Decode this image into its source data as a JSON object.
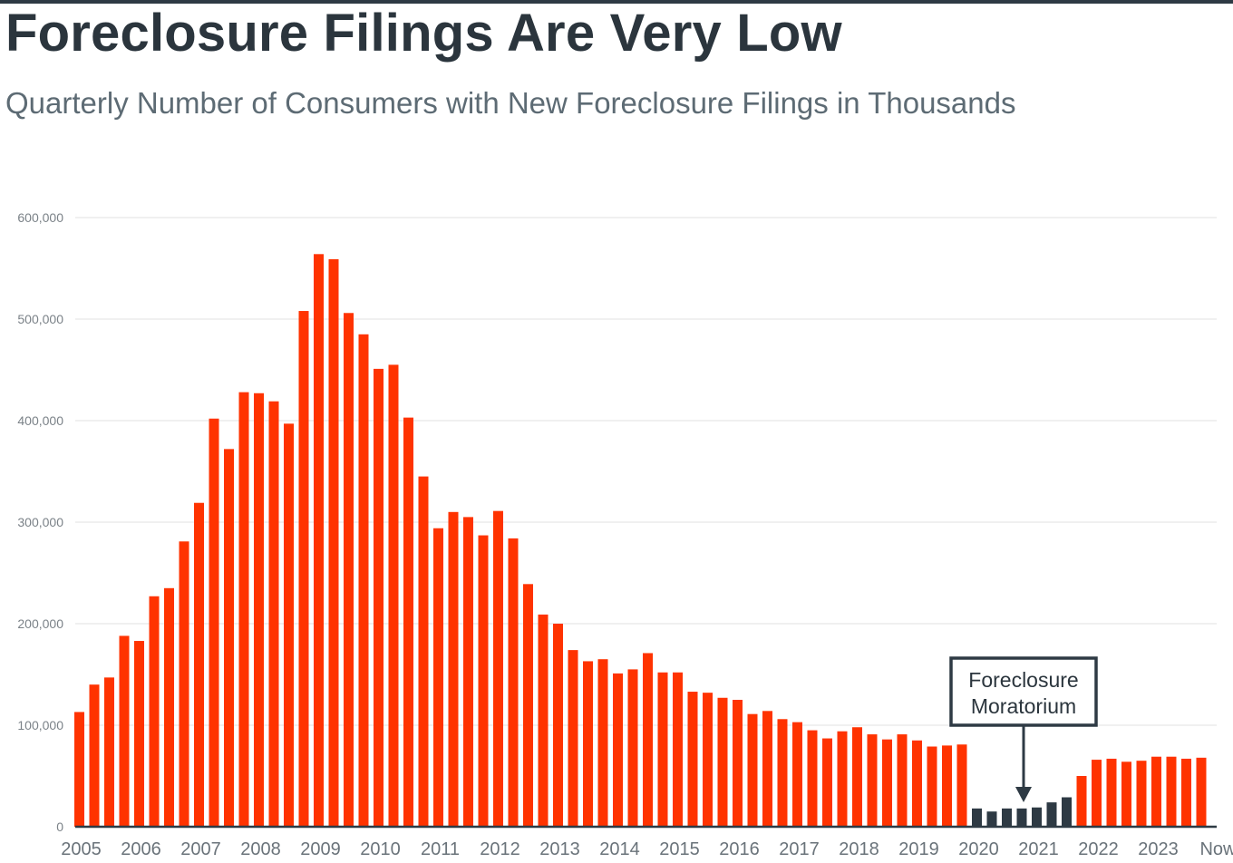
{
  "header": {
    "title": "Foreclosure Filings Are Very Low",
    "subtitle": "Quarterly Number of Consumers with New Foreclosure Filings in Thousands"
  },
  "colors": {
    "normal_bar": "#ff3300",
    "moratorium_bar": "#2e3a44",
    "grid": "#e1e1e1",
    "axis": "#2e3a44"
  },
  "chart_data": {
    "type": "bar",
    "title": "Foreclosure Filings Are Very Low",
    "subtitle": "Quarterly Number of Consumers with New Foreclosure Filings in Thousands",
    "xlabel": "",
    "ylabel": "",
    "ylim": [
      0,
      600000
    ],
    "y_ticks": [
      0,
      100000,
      200000,
      300000,
      400000,
      500000,
      600000
    ],
    "y_tick_labels": [
      "0",
      "100,000",
      "200,000",
      "300,000",
      "400,000",
      "500,000",
      "600,000"
    ],
    "x_tick_labels": [
      "2005",
      "2006",
      "2007",
      "2008",
      "2009",
      "2010",
      "2011",
      "2012",
      "2013",
      "2014",
      "2015",
      "2016",
      "2017",
      "2018",
      "2019",
      "2020",
      "2021",
      "2022",
      "2023",
      "Now"
    ],
    "grid": true,
    "legend": "none",
    "quarters_start": "2005",
    "values": [
      113000,
      140000,
      147000,
      188000,
      183000,
      227000,
      235000,
      281000,
      319000,
      402000,
      372000,
      428000,
      427000,
      419000,
      397000,
      508000,
      564000,
      559000,
      506000,
      485000,
      451000,
      455000,
      403000,
      345000,
      294000,
      310000,
      305000,
      287000,
      311000,
      284000,
      239000,
      209000,
      200000,
      174000,
      163000,
      165000,
      151000,
      155000,
      171000,
      152000,
      152000,
      133000,
      132000,
      127000,
      125000,
      111000,
      114000,
      106000,
      103000,
      95000,
      87000,
      94000,
      98000,
      91000,
      86000,
      91000,
      85000,
      79000,
      80000,
      81000,
      18000,
      15000,
      18000,
      18000,
      19000,
      24000,
      29000,
      50000,
      66000,
      67000,
      64000,
      65000,
      69000,
      69000,
      67000,
      68000
    ],
    "moratorium_indices": [
      60,
      61,
      62,
      63,
      64,
      65,
      66
    ],
    "annotation": {
      "text_line1": "Foreclosure",
      "text_line2": "Moratorium"
    }
  }
}
